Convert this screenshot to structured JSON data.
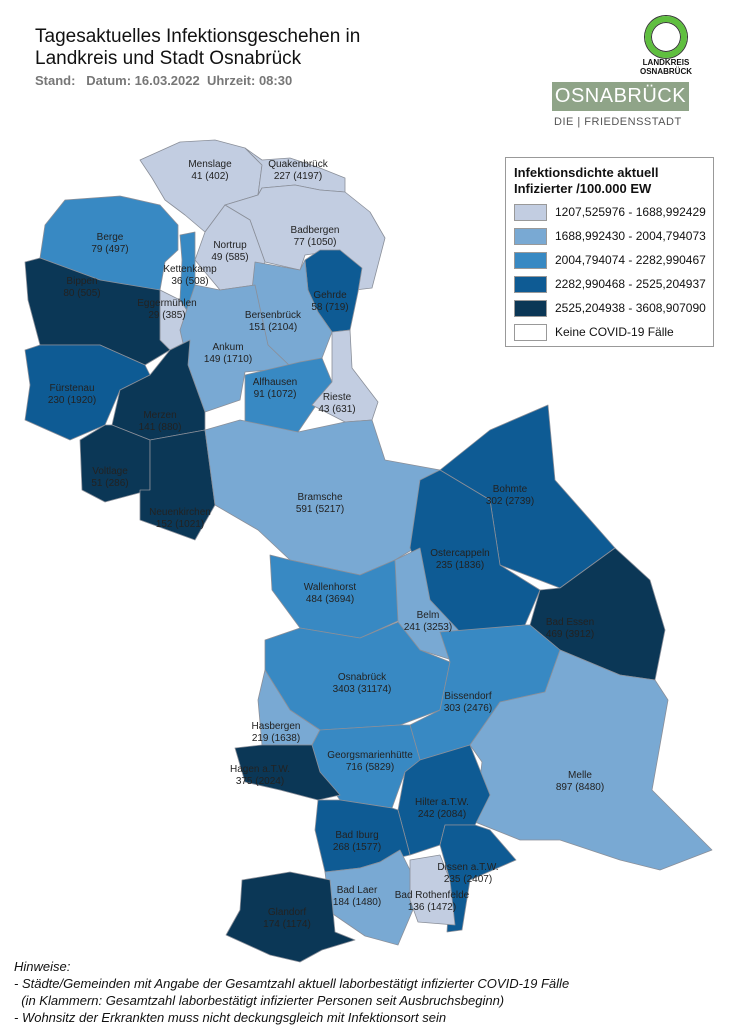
{
  "header": {
    "title_line1": "Tagesaktuelles Infektionsgeschehen in",
    "title_line2": "Landkreis und Stadt Osnabrück",
    "stand": "Stand:   Datum: 16.03.2022  Uhrzeit: 08:30"
  },
  "logos": {
    "landkreis_line1": "LANDKREIS",
    "landkreis_line2": "OSNABRÜCK",
    "stadt": "OSNABRÜCK",
    "stadt_tagline": "DIE | FRIEDENSSTADT",
    "landkreis_ring_color": "#5fbf3f",
    "stadt_bg_color": "#8fa488"
  },
  "legend": {
    "title_line1": "Infektionsdichte aktuell",
    "title_line2": "Infizierter /100.000 EW",
    "classes": [
      {
        "label": "1207,525976 - 1688,992429",
        "color": "#c2cde1"
      },
      {
        "label": "1688,992430 - 2004,794073",
        "color": "#79a9d3"
      },
      {
        "label": "2004,794074 - 2282,990467",
        "color": "#3889c3"
      },
      {
        "label": "2282,990468 - 2525,204937",
        "color": "#0e5b94"
      },
      {
        "label": "2525,204938 - 3608,907090",
        "color": "#0b3756"
      },
      {
        "label": "Keine COVID-19 Fälle",
        "color": "#ffffff"
      }
    ]
  },
  "regions": [
    {
      "name": "Menslage",
      "current": "41",
      "total": "402",
      "class": 0
    },
    {
      "name": "Quakenbrück",
      "current": "227",
      "total": "4197",
      "class": 0
    },
    {
      "name": "Badbergen",
      "current": "77",
      "total": "1050",
      "class": 0
    },
    {
      "name": "Nortrup",
      "current": "49",
      "total": "585",
      "class": 0
    },
    {
      "name": "Berge",
      "current": "79",
      "total": "497",
      "class": 2
    },
    {
      "name": "Kettenkamp",
      "current": "36",
      "total": "508",
      "class": 2
    },
    {
      "name": "Eggermühlen",
      "current": "29",
      "total": "385",
      "class": 0
    },
    {
      "name": "Bippen",
      "current": "80",
      "total": "505",
      "class": 4
    },
    {
      "name": "Gehrde",
      "current": "58",
      "total": "719",
      "class": 3
    },
    {
      "name": "Bersenbrück",
      "current": "151",
      "total": "2104",
      "class": 1
    },
    {
      "name": "Ankum",
      "current": "149",
      "total": "1710",
      "class": 1
    },
    {
      "name": "Fürstenau",
      "current": "230",
      "total": "1920",
      "class": 3
    },
    {
      "name": "Alfhausen",
      "current": "91",
      "total": "1072",
      "class": 2
    },
    {
      "name": "Rieste",
      "current": "43",
      "total": "631",
      "class": 0
    },
    {
      "name": "Merzen",
      "current": "141",
      "total": "880",
      "class": 4
    },
    {
      "name": "Voltlage",
      "current": "51",
      "total": "286",
      "class": 4
    },
    {
      "name": "Neuenkirchen",
      "current": "152",
      "total": "1021",
      "class": 4
    },
    {
      "name": "Bramsche",
      "current": "591",
      "total": "5217",
      "class": 1
    },
    {
      "name": "Bohmte",
      "current": "302",
      "total": "2739",
      "class": 3
    },
    {
      "name": "Ostercappeln",
      "current": "235",
      "total": "1836",
      "class": 3
    },
    {
      "name": "Wallenhorst",
      "current": "484",
      "total": "3694",
      "class": 2
    },
    {
      "name": "Belm",
      "current": "241",
      "total": "3253",
      "class": 1
    },
    {
      "name": "Bad Essen",
      "current": "469",
      "total": "3912",
      "class": 4
    },
    {
      "name": "Osnabrück",
      "current": "3403",
      "total": "31174",
      "class": 2
    },
    {
      "name": "Bissendorf",
      "current": "303",
      "total": "2476",
      "class": 2
    },
    {
      "name": "Hasbergen",
      "current": "219",
      "total": "1638",
      "class": 1
    },
    {
      "name": "Georgsmarienhütte",
      "current": "716",
      "total": "5829",
      "class": 2
    },
    {
      "name": "Melle",
      "current": "897",
      "total": "8480",
      "class": 1
    },
    {
      "name": "Hagen a.T.W.",
      "current": "375",
      "total": "2024",
      "class": 4
    },
    {
      "name": "Hilter a.T.W.",
      "current": "242",
      "total": "2084",
      "class": 3
    },
    {
      "name": "Bad Iburg",
      "current": "268",
      "total": "1577",
      "class": 3
    },
    {
      "name": "Dissen a.T.W.",
      "current": "235",
      "total": "2407",
      "class": 3
    },
    {
      "name": "Bad Laer",
      "current": "184",
      "total": "1480",
      "class": 1
    },
    {
      "name": "Bad Rothenfelde",
      "current": "136",
      "total": "1472",
      "class": 0
    },
    {
      "name": "Glandorf",
      "current": "174",
      "total": "1174",
      "class": 4
    }
  ],
  "notes": {
    "heading": "Hinweise:",
    "line1": "- Städte/Gemeinden mit Angabe der Gesamtzahl aktuell laborbestätigt infizierter COVID-19 Fälle",
    "line2": "  (in Klammern: Gesamtzahl laborbestätigt infizierter Personen seit Ausbruchsbeginn)",
    "line3": "- Wohnsitz der Erkrankten muss nicht deckungsgleich mit Infektionsort sein"
  }
}
